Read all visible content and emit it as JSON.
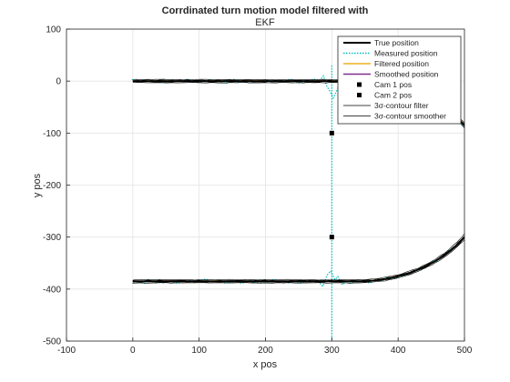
{
  "chart_data": {
    "type": "line",
    "title": "Corrdinated turn motion model filtered with",
    "subtitle": "EKF",
    "xlabel": "x pos",
    "ylabel": "y pos",
    "xlim": [
      -100,
      500
    ],
    "ylim": [
      -500,
      100
    ],
    "xticks": [
      -100,
      0,
      100,
      200,
      300,
      400,
      500
    ],
    "yticks": [
      -500,
      -400,
      -300,
      -200,
      -100,
      0,
      100
    ],
    "grid": true,
    "legend_position": "top-right",
    "track": {
      "straight_start_x": 0,
      "straight_end_x": 340,
      "upper_y": 0,
      "lower_y": -385,
      "turn_center": [
        340,
        -192.5
      ],
      "turn_radius": 192.5
    },
    "cameras": [
      {
        "name": "Cam 1 pos",
        "x": 300,
        "y": -100
      },
      {
        "name": "Cam 2 pos",
        "x": 300,
        "y": -300
      }
    ],
    "series": [
      {
        "name": "True position",
        "color": "#000000",
        "style": "solid-thick"
      },
      {
        "name": "Measured position",
        "color": "#00bfbf",
        "style": "dotted"
      },
      {
        "name": "Filtered position",
        "color": "#edb120",
        "style": "solid"
      },
      {
        "name": "Smoothed position",
        "color": "#7e2f8e",
        "style": "solid"
      },
      {
        "name": "Cam 1 pos",
        "color": "#000000",
        "style": "marker"
      },
      {
        "name": "Cam 2 pos",
        "color": "#000000",
        "style": "marker"
      },
      {
        "name": "3σ-contour filter",
        "color": "#000000",
        "style": "solid-thin"
      },
      {
        "name": "3σ-contour smoother",
        "color": "#000000",
        "style": "solid-thin"
      }
    ]
  }
}
